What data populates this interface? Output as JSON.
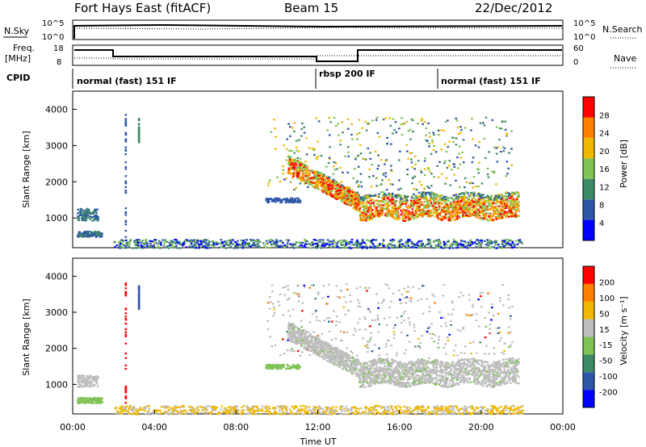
{
  "header": {
    "title": "Fort Hays East (fitACF)",
    "beam": "Beam 15",
    "date": "22/Dec/2012"
  },
  "noise_panel": {
    "left_label": "N.Sky",
    "right_label": "N.Search",
    "left_ticks": [
      "10^5",
      "10^0"
    ],
    "right_ticks": [
      "10^5",
      "10^0"
    ]
  },
  "freq_panel": {
    "left_label_1": "Freq.",
    "left_label_2": "[MHz]",
    "left_ticks": [
      "18",
      "8"
    ],
    "right_label": "Nave",
    "right_ticks": [
      "60",
      "0"
    ]
  },
  "cpid_panel": {
    "label": "CPID",
    "segments": [
      {
        "label": "normal (fast) 151 IF",
        "start_hour": 0
      },
      {
        "label": "rbsp 200 IF",
        "start_hour": 12
      },
      {
        "label": "normal (fast) 151 IF",
        "start_hour": 18
      }
    ]
  },
  "chart_data": [
    {
      "type": "heatmap",
      "title": "Power",
      "ylabel": "Slant Range [km]",
      "colorbar_label": "Power [dB]",
      "colorbar_ticks": [
        "28",
        "24",
        "20",
        "16",
        "12",
        "8",
        "4"
      ],
      "colors": [
        "#0000ff",
        "#2f56a8",
        "#3d8a66",
        "#7fc255",
        "#f0b800",
        "#ff7f00",
        "#ff0000"
      ],
      "xlim": [
        0,
        24
      ],
      "ylim": [
        180,
        4500
      ],
      "x_ticks": [
        "00:00",
        "04:00",
        "08:00",
        "12:00",
        "16:00",
        "20:00",
        "00:00"
      ],
      "y_ticks": [
        "1000",
        "2000",
        "3000",
        "4000"
      ],
      "features": [
        {
          "name": "early-patch",
          "x_start": 0.2,
          "x_end": 1.2,
          "range_start": 900,
          "range_end": 1300,
          "level": 3
        },
        {
          "name": "early-low",
          "x_start": 0.3,
          "x_end": 1.5,
          "range_start": 500,
          "range_end": 650,
          "level": 3
        },
        {
          "name": "main-echo",
          "x_start": 10.5,
          "x_end": 21.8,
          "range_start": 1100,
          "range_end": 2500,
          "level": 6
        },
        {
          "name": "upper-scatter",
          "x_start": 9.5,
          "x_end": 21.5,
          "range_start": 1800,
          "range_end": 3800,
          "level": 3
        },
        {
          "name": "ground-scatter",
          "x_start": 2.0,
          "x_end": 22.0,
          "range_start": 180,
          "range_end": 400,
          "level": 2
        }
      ]
    },
    {
      "type": "heatmap",
      "title": "Velocity",
      "ylabel": "Slant Range [km]",
      "xlabel": "Time UT",
      "colorbar_label": "Velocity [m s⁻¹]",
      "colorbar_ticks": [
        "200",
        "100",
        "50",
        "15",
        "-15",
        "-50",
        "-100",
        "-200"
      ],
      "colors": [
        "#0000ff",
        "#2f56a8",
        "#3d8a66",
        "#7fc255",
        "#bdbdbd",
        "#f0b800",
        "#ff7f00",
        "#ff0000"
      ],
      "xlim": [
        0,
        24
      ],
      "ylim": [
        180,
        4500
      ],
      "x_ticks": [
        "00:00",
        "04:00",
        "08:00",
        "12:00",
        "16:00",
        "20:00",
        "00:00"
      ],
      "y_ticks": [
        "1000",
        "2000",
        "3000",
        "4000"
      ]
    }
  ]
}
